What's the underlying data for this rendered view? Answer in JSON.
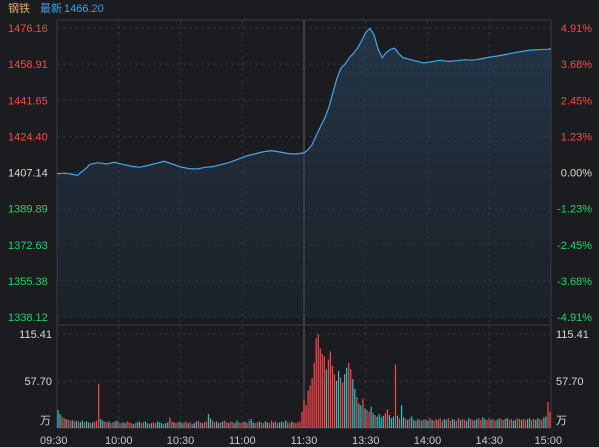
{
  "header": {
    "name": "钢铁",
    "latest_label": "最新",
    "latest_value": "1466.20"
  },
  "colors": {
    "up": "#ff4646",
    "down": "#1fd36b",
    "neutral": "#d8d8d8",
    "line": "#41a8f0",
    "grid": "#303238",
    "volume_up": "#ff4646",
    "volume_down": "#22c7c7"
  },
  "chart_data": [
    {
      "type": "line",
      "name": "price",
      "ylim": [
        1338.12,
        1476.16
      ],
      "base": 1407.14,
      "y_ticks_left": [
        {
          "label": "1476.16",
          "value": 1476.16
        },
        {
          "label": "1458.91",
          "value": 1458.91
        },
        {
          "label": "1441.65",
          "value": 1441.65
        },
        {
          "label": "1424.40",
          "value": 1424.4
        },
        {
          "label": "1407.14",
          "value": 1407.14
        },
        {
          "label": "1389.89",
          "value": 1389.89
        },
        {
          "label": "1372.63",
          "value": 1372.63
        },
        {
          "label": "1355.38",
          "value": 1355.38
        },
        {
          "label": "1338.12",
          "value": 1338.12
        }
      ],
      "y_ticks_right": [
        {
          "label": "4.91%",
          "value": 1476.16
        },
        {
          "label": "3.68%",
          "value": 1458.91
        },
        {
          "label": "2.45%",
          "value": 1441.65
        },
        {
          "label": "1.23%",
          "value": 1424.4
        },
        {
          "label": "0.00%",
          "value": 1407.14
        },
        {
          "label": "-1.23%",
          "value": 1389.89
        },
        {
          "label": "-2.45%",
          "value": 1372.63
        },
        {
          "label": "-3.68%",
          "value": 1355.38
        },
        {
          "label": "-4.91%",
          "value": 1338.12
        }
      ],
      "x_ticks": [
        "09:30",
        "10:00",
        "10:30",
        "11:00",
        "11:30",
        "13:30",
        "14:00",
        "14:30",
        "15:00"
      ],
      "x_tick_minutes": [
        0,
        30,
        60,
        90,
        120,
        150,
        180,
        210,
        240
      ],
      "points": [
        [
          0,
          1406.5
        ],
        [
          4,
          1406.8
        ],
        [
          8,
          1406.2
        ],
        [
          10,
          1405.8
        ],
        [
          12,
          1407.5
        ],
        [
          14,
          1409.0
        ],
        [
          16,
          1411.0
        ],
        [
          20,
          1411.8
        ],
        [
          24,
          1411.2
        ],
        [
          28,
          1412.0
        ],
        [
          32,
          1411.0
        ],
        [
          36,
          1410.2
        ],
        [
          40,
          1409.6
        ],
        [
          44,
          1410.5
        ],
        [
          48,
          1411.5
        ],
        [
          52,
          1412.5
        ],
        [
          56,
          1411.2
        ],
        [
          60,
          1409.8
        ],
        [
          64,
          1409.0
        ],
        [
          68,
          1408.8
        ],
        [
          72,
          1409.6
        ],
        [
          76,
          1410.0
        ],
        [
          80,
          1411.0
        ],
        [
          84,
          1412.0
        ],
        [
          88,
          1413.5
        ],
        [
          92,
          1415.0
        ],
        [
          96,
          1416.0
        ],
        [
          100,
          1417.0
        ],
        [
          104,
          1417.6
        ],
        [
          108,
          1417.0
        ],
        [
          112,
          1416.2
        ],
        [
          116,
          1416.0
        ],
        [
          120,
          1416.5
        ],
        [
          122,
          1418.0
        ],
        [
          124,
          1420.5
        ],
        [
          126,
          1425.0
        ],
        [
          128,
          1429.0
        ],
        [
          130,
          1433.0
        ],
        [
          132,
          1438.0
        ],
        [
          134,
          1445.0
        ],
        [
          136,
          1452.0
        ],
        [
          138,
          1457.0
        ],
        [
          140,
          1459.0
        ],
        [
          142,
          1462.0
        ],
        [
          144,
          1464.0
        ],
        [
          146,
          1466.5
        ],
        [
          148,
          1470.0
        ],
        [
          150,
          1474.0
        ],
        [
          152,
          1476.0
        ],
        [
          154,
          1473.0
        ],
        [
          156,
          1466.0
        ],
        [
          158,
          1462.0
        ],
        [
          160,
          1464.5
        ],
        [
          162,
          1466.0
        ],
        [
          164,
          1466.5
        ],
        [
          166,
          1464.0
        ],
        [
          168,
          1462.0
        ],
        [
          170,
          1461.5
        ],
        [
          174,
          1460.5
        ],
        [
          178,
          1459.5
        ],
        [
          182,
          1460.0
        ],
        [
          186,
          1460.8
        ],
        [
          190,
          1460.2
        ],
        [
          194,
          1460.5
        ],
        [
          198,
          1461.0
        ],
        [
          202,
          1460.8
        ],
        [
          206,
          1461.4
        ],
        [
          210,
          1462.2
        ],
        [
          214,
          1462.8
        ],
        [
          218,
          1463.5
        ],
        [
          222,
          1464.3
        ],
        [
          226,
          1465.0
        ],
        [
          230,
          1465.6
        ],
        [
          234,
          1465.8
        ],
        [
          238,
          1466.0
        ],
        [
          240,
          1466.2
        ]
      ]
    },
    {
      "type": "bar",
      "name": "volume",
      "unit": "万",
      "ylim": [
        0,
        115.41
      ],
      "y_ticks": [
        {
          "label": "115.41",
          "value": 115.41
        },
        {
          "label": "57.70",
          "value": 57.7
        }
      ],
      "values": [
        22,
        17,
        14,
        12,
        11,
        10,
        9,
        10,
        8,
        9,
        8,
        7,
        9,
        7,
        8,
        7,
        6,
        7,
        8,
        9,
        54,
        11,
        9,
        8,
        7,
        8,
        6,
        7,
        8,
        9,
        7,
        6,
        7,
        6,
        8,
        7,
        6,
        5,
        6,
        7,
        8,
        6,
        7,
        8,
        6,
        5,
        6,
        7,
        6,
        8,
        7,
        6,
        5,
        6,
        7,
        13,
        8,
        7,
        6,
        7,
        8,
        6,
        7,
        8,
        6,
        7,
        5,
        6,
        8,
        9,
        7,
        6,
        7,
        8,
        17,
        12,
        9,
        7,
        8,
        6,
        7,
        8,
        9,
        7,
        6,
        8,
        7,
        6,
        9,
        7,
        6,
        7,
        8,
        6,
        9,
        11,
        7,
        6,
        7,
        8,
        7,
        6,
        8,
        7,
        6,
        9,
        7,
        8,
        6,
        7,
        8,
        7,
        9,
        7,
        6,
        8,
        7,
        6,
        7,
        8,
        20,
        34,
        28,
        46,
        52,
        61,
        80,
        110,
        115.4,
        98,
        91,
        88,
        72,
        84,
        94,
        76,
        66,
        58,
        70,
        62,
        56,
        66,
        74,
        80,
        72,
        60,
        48,
        38,
        30,
        28,
        36,
        24,
        22,
        20,
        26,
        18,
        16,
        14,
        17,
        13,
        15,
        18,
        23,
        16,
        12,
        14,
        78,
        15,
        12,
        28,
        13,
        11,
        10,
        12,
        14,
        10,
        9,
        11,
        10,
        9,
        11,
        10,
        9,
        12,
        10,
        9,
        11,
        10,
        12,
        9,
        11,
        10,
        12,
        9,
        11,
        10,
        9,
        12,
        10,
        11,
        10,
        9,
        12,
        11,
        10,
        9,
        11,
        12,
        10,
        13,
        11,
        10,
        12,
        10,
        11,
        9,
        10,
        12,
        11,
        10,
        11,
        12,
        10,
        11,
        9,
        10,
        12,
        11,
        10,
        11,
        10,
        11,
        12,
        10,
        11,
        10,
        12,
        11,
        10,
        13,
        14,
        32,
        20
      ],
      "directions": "dduuduudududdudduduuudduuduudduudduuududduudduduudddudduuduudduuduudduuduudduudduduuduudduuuduudduuduudduuduudduduuduuuuuuuuuuuuuuuuduuuudduudduuddudduduuddudddduudddududdududdudududduduuduudduudduuduudduudduudduuduudduudduudduuduudduudduudduuduuduuu"
    }
  ]
}
